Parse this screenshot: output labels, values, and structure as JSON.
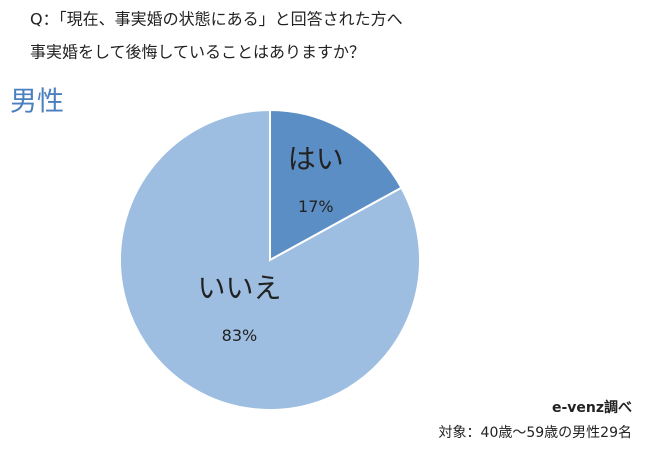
{
  "chart_data": {
    "type": "pie",
    "title_lines": [
      "Q：「現在、事実婚の状態にある」と回答された方へ",
      "事実婚をして後悔していることはありますか？"
    ],
    "subtitle": "男性",
    "categories": [
      "はい",
      "いいえ"
    ],
    "values": [
      17,
      83
    ],
    "value_labels": [
      "17%",
      "83%"
    ],
    "colors": [
      "#5b8ec4",
      "#9dbde1"
    ],
    "source": "e-venz調べ",
    "note": "対象：40歳〜59歳の男性29名"
  }
}
